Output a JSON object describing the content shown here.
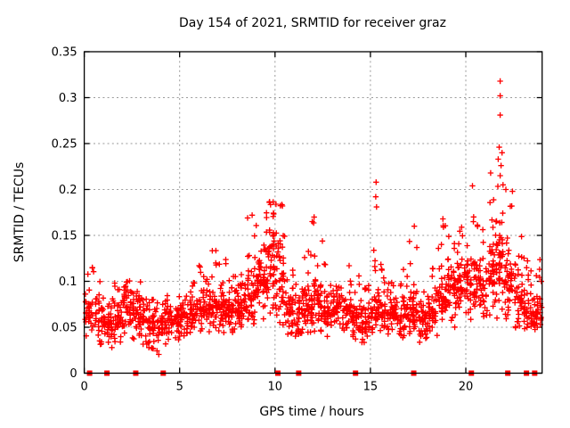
{
  "window": {
    "background": "#ffffff"
  },
  "chart_data": {
    "type": "scatter",
    "title": "Day 154 of 2021, SRMTID for receiver graz",
    "xlabel": "GPS time / hours",
    "ylabel": "SRMTID / TECUs",
    "xlim": [
      0,
      24
    ],
    "ylim": [
      0,
      0.35
    ],
    "xticks": [
      0,
      5,
      10,
      15,
      20
    ],
    "xtick_labels": [
      "0",
      "5",
      "10",
      "15",
      "20"
    ],
    "yticks": [
      0,
      0.05,
      0.1,
      0.15,
      0.2,
      0.25,
      0.3,
      0.35
    ],
    "ytick_labels": [
      "0",
      "0.05",
      "0.1",
      "0.15",
      "0.2",
      "0.25",
      "0.3",
      "0.35"
    ],
    "grid": true,
    "legend": "none",
    "marker": "plus",
    "colors": {
      "points": "#ff0000",
      "grid": "#9a9a9a",
      "axis": "#000000",
      "text": "#000000"
    },
    "seed": 42,
    "series": [
      {
        "name": "SRMTID",
        "density_bins": [
          [
            0.0,
            34,
            0.035,
            0.07,
            0.125
          ],
          [
            0.5,
            36,
            0.03,
            0.06,
            0.11
          ],
          [
            1.0,
            40,
            0.025,
            0.05,
            0.095
          ],
          [
            1.5,
            40,
            0.03,
            0.055,
            0.1
          ],
          [
            2.0,
            46,
            0.04,
            0.07,
            0.115
          ],
          [
            2.5,
            44,
            0.035,
            0.065,
            0.12
          ],
          [
            3.0,
            40,
            0.025,
            0.055,
            0.095
          ],
          [
            3.5,
            36,
            0.015,
            0.05,
            0.09
          ],
          [
            4.0,
            40,
            0.03,
            0.055,
            0.095
          ],
          [
            4.5,
            36,
            0.035,
            0.055,
            0.085
          ],
          [
            5.0,
            36,
            0.035,
            0.06,
            0.09
          ],
          [
            5.5,
            40,
            0.04,
            0.062,
            0.1
          ],
          [
            6.0,
            40,
            0.04,
            0.067,
            0.12
          ],
          [
            6.5,
            44,
            0.04,
            0.07,
            0.135
          ],
          [
            7.0,
            44,
            0.04,
            0.07,
            0.13
          ],
          [
            7.5,
            40,
            0.035,
            0.065,
            0.115
          ],
          [
            8.0,
            44,
            0.045,
            0.072,
            0.135
          ],
          [
            8.5,
            46,
            0.05,
            0.08,
            0.17
          ],
          [
            9.0,
            50,
            0.055,
            0.095,
            0.18
          ],
          [
            9.5,
            54,
            0.06,
            0.115,
            0.19
          ],
          [
            10.0,
            50,
            0.05,
            0.1,
            0.185
          ],
          [
            10.5,
            40,
            0.035,
            0.065,
            0.12
          ],
          [
            11.0,
            40,
            0.03,
            0.06,
            0.105
          ],
          [
            11.5,
            44,
            0.04,
            0.07,
            0.16
          ],
          [
            12.0,
            44,
            0.04,
            0.075,
            0.17
          ],
          [
            12.5,
            40,
            0.04,
            0.065,
            0.12
          ],
          [
            13.0,
            40,
            0.045,
            0.07,
            0.12
          ],
          [
            13.5,
            40,
            0.04,
            0.065,
            0.13
          ],
          [
            14.0,
            40,
            0.035,
            0.06,
            0.11
          ],
          [
            14.5,
            40,
            0.03,
            0.055,
            0.1
          ],
          [
            15.0,
            40,
            0.04,
            0.065,
            0.155
          ],
          [
            15.5,
            40,
            0.04,
            0.06,
            0.12
          ],
          [
            16.0,
            40,
            0.04,
            0.065,
            0.13
          ],
          [
            16.5,
            40,
            0.03,
            0.06,
            0.12
          ],
          [
            17.0,
            40,
            0.04,
            0.065,
            0.16
          ],
          [
            17.5,
            40,
            0.03,
            0.055,
            0.1
          ],
          [
            18.0,
            40,
            0.04,
            0.065,
            0.125
          ],
          [
            18.5,
            46,
            0.05,
            0.08,
            0.17
          ],
          [
            19.0,
            46,
            0.05,
            0.09,
            0.15
          ],
          [
            19.5,
            46,
            0.05,
            0.09,
            0.16
          ],
          [
            20.0,
            46,
            0.05,
            0.095,
            0.2
          ],
          [
            20.5,
            44,
            0.05,
            0.09,
            0.18
          ],
          [
            21.0,
            46,
            0.05,
            0.1,
            0.215
          ],
          [
            21.5,
            50,
            0.06,
            0.115,
            0.245
          ],
          [
            22.0,
            44,
            0.05,
            0.09,
            0.2
          ],
          [
            22.5,
            40,
            0.04,
            0.075,
            0.155
          ],
          [
            23.0,
            40,
            0.04,
            0.065,
            0.135
          ],
          [
            23.5,
            40,
            0.04,
            0.062,
            0.125
          ]
        ],
        "outliers": [
          [
            21.8,
            0.318
          ],
          [
            21.8,
            0.302
          ],
          [
            21.8,
            0.281
          ],
          [
            21.75,
            0.246
          ],
          [
            21.9,
            0.24
          ],
          [
            21.7,
            0.233
          ],
          [
            21.85,
            0.226
          ],
          [
            21.8,
            0.215
          ],
          [
            21.3,
            0.218
          ],
          [
            15.3,
            0.208
          ],
          [
            15.28,
            0.192
          ],
          [
            15.32,
            0.181
          ],
          [
            20.35,
            0.204
          ],
          [
            22.1,
            0.2
          ],
          [
            12.05,
            0.17
          ],
          [
            11.95,
            0.165
          ],
          [
            17.3,
            0.16
          ],
          [
            18.8,
            0.168
          ],
          [
            9.7,
            0.186
          ],
          [
            10.05,
            0.184
          ],
          [
            8.8,
            0.172
          ]
        ]
      }
    ],
    "zero_flags_hours": [
      0.28,
      1.19,
      2.7,
      4.14,
      10.15,
      11.24,
      14.22,
      17.27,
      20.29,
      22.2,
      23.18,
      23.61
    ]
  }
}
